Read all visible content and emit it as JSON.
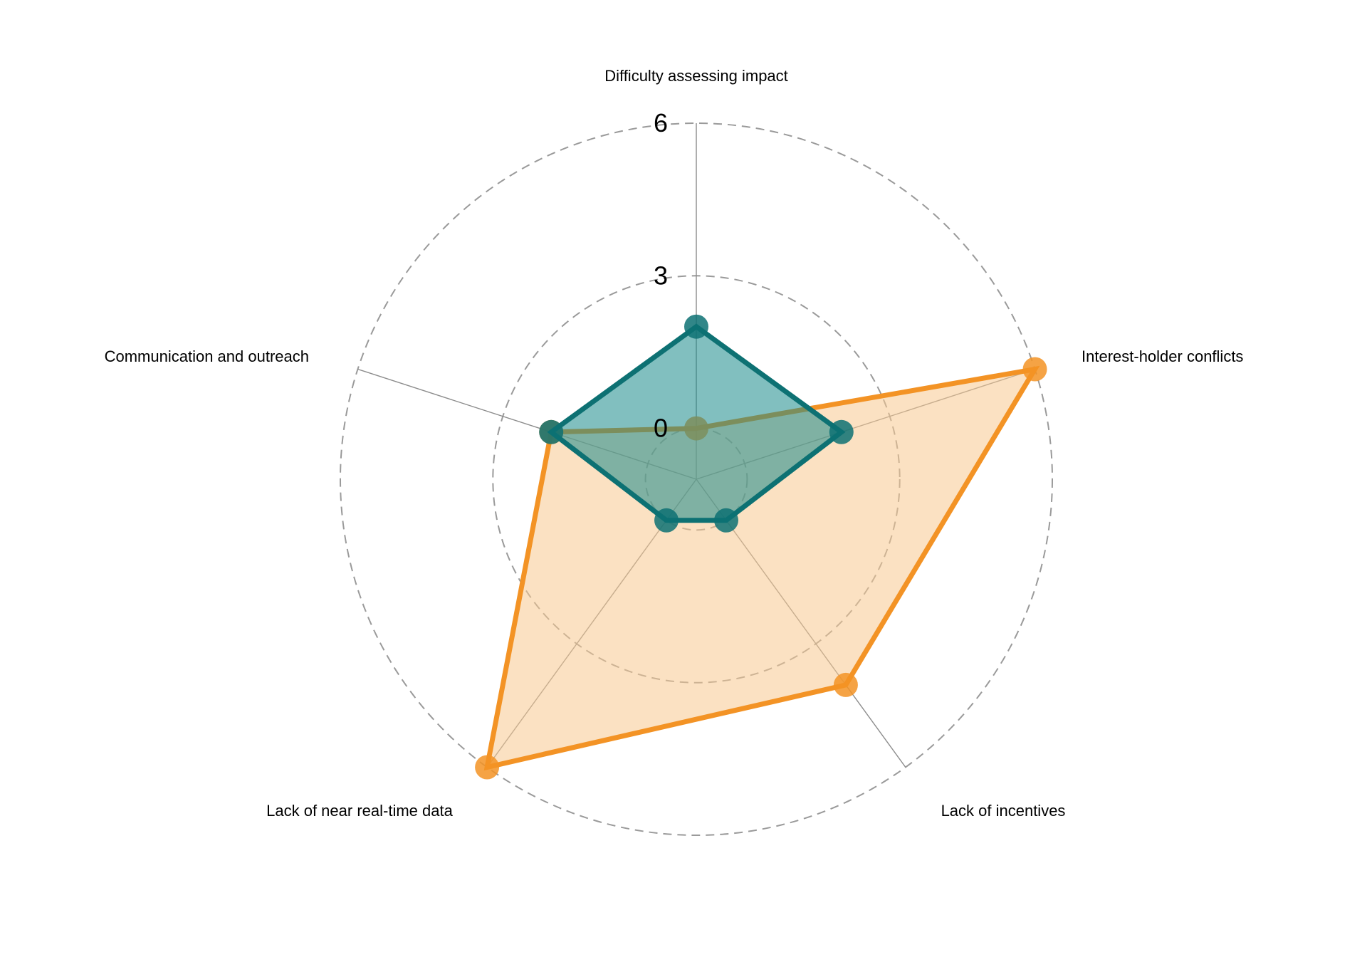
{
  "chart_data": {
    "type": "radar",
    "axes": [
      "Difficulty assessing impact",
      "Interest-holder conflicts",
      "Lack of incentives",
      "Lack of near real-time data",
      "Communication and outreach"
    ],
    "rlim": [
      -1,
      6
    ],
    "ticks": [
      {
        "value": 0,
        "label": "0"
      },
      {
        "value": 3,
        "label": "3"
      },
      {
        "value": 6,
        "label": "6"
      }
    ],
    "grid": true,
    "series": [
      {
        "color": "#f39325",
        "fill": "#f7c98f",
        "values": [
          0,
          6,
          4,
          6,
          2
        ]
      },
      {
        "color": "#0d7173",
        "fill": "#1a8a8a",
        "values": [
          2,
          2,
          0,
          0,
          2
        ]
      }
    ]
  }
}
